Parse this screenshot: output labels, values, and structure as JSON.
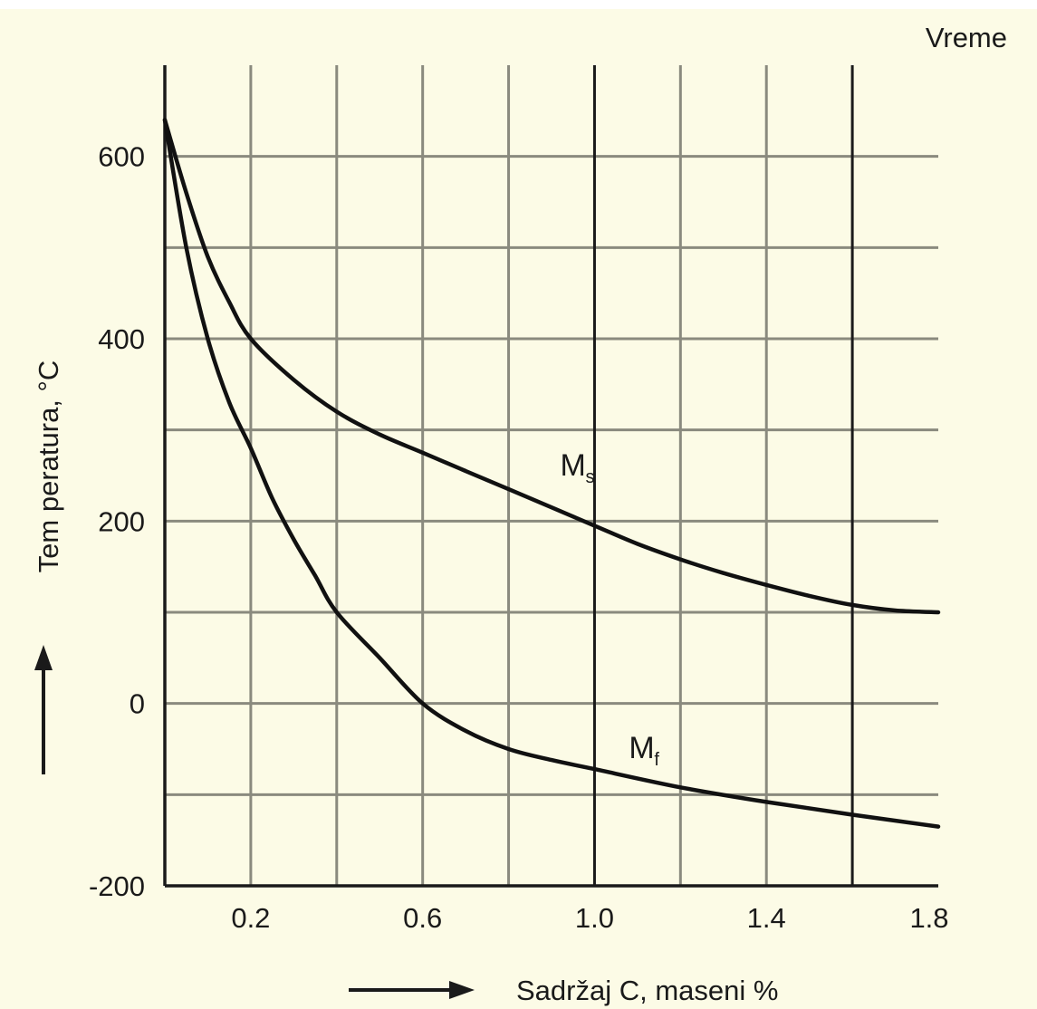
{
  "colors": {
    "background": "#fcfbe6",
    "grid_major": "#1a1a1a",
    "grid_minor": "#8a8a7e",
    "curve": "#111111",
    "text": "#1a1a1a"
  },
  "chart_data": {
    "type": "line",
    "corner_label": "Vreme",
    "xlabel": "Sadržaj C,  maseni %",
    "ylabel": "Tem peratura,  °C",
    "xlim": [
      0.0,
      1.8
    ],
    "ylim": [
      -200,
      700
    ],
    "xticks": [
      0.2,
      0.6,
      1.0,
      1.4,
      1.8
    ],
    "xtick_labels": [
      "0.2",
      "0.6",
      "1.0",
      "1.4",
      "1.8"
    ],
    "yticks": [
      -200,
      0,
      200,
      400,
      600
    ],
    "ytick_labels": [
      "-200",
      "0",
      "200",
      "400",
      "600"
    ],
    "grid_x": [
      0.2,
      0.4,
      0.6,
      0.8,
      1.0,
      1.2,
      1.4,
      1.6
    ],
    "grid_y": [
      -100,
      0,
      100,
      200,
      300,
      400,
      500,
      600
    ],
    "grid_x_major": [
      1.0,
      1.6
    ],
    "grid": true,
    "series": [
      {
        "name": "Ms",
        "label_main": "M",
        "label_sub": "s",
        "label_at": [
          0.92,
          250
        ],
        "x": [
          0.0,
          0.05,
          0.1,
          0.15,
          0.2,
          0.3,
          0.4,
          0.5,
          0.6,
          0.7,
          0.8,
          0.9,
          1.0,
          1.1,
          1.2,
          1.3,
          1.4,
          1.5,
          1.6,
          1.7,
          1.8
        ],
        "y": [
          640,
          560,
          490,
          440,
          400,
          355,
          320,
          295,
          275,
          255,
          235,
          215,
          195,
          175,
          158,
          143,
          130,
          118,
          108,
          102,
          100
        ]
      },
      {
        "name": "Mf",
        "label_main": "M",
        "label_sub": "f",
        "label_at": [
          1.08,
          -60
        ],
        "x": [
          0.0,
          0.05,
          0.1,
          0.15,
          0.2,
          0.25,
          0.3,
          0.35,
          0.4,
          0.5,
          0.6,
          0.7,
          0.8,
          0.9,
          1.0,
          1.2,
          1.4,
          1.6,
          1.8
        ],
        "y": [
          640,
          500,
          400,
          330,
          280,
          225,
          180,
          140,
          100,
          50,
          0,
          -30,
          -50,
          -62,
          -72,
          -92,
          -108,
          -122,
          -135
        ]
      }
    ]
  }
}
